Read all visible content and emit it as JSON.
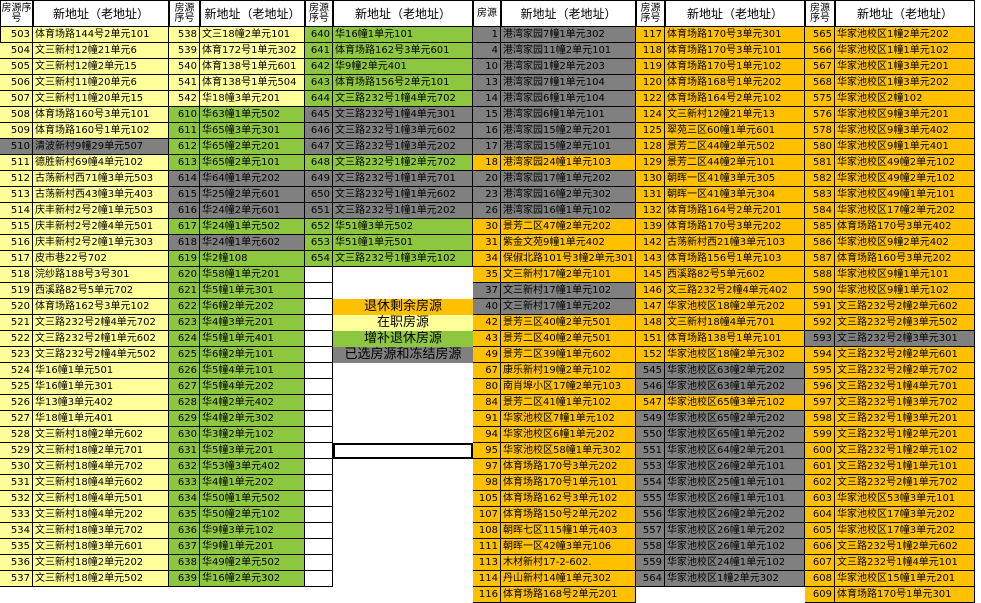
{
  "headers": {
    "num_a": "房源序号",
    "addr": "新地址（老地址）",
    "num_b": "房源"
  },
  "colors": {
    "retired": "#ffc000",
    "working": "#ffff99",
    "supplement": "#8dc63f",
    "selected_frozen": "#808080"
  },
  "legend": {
    "retired": "退休剩余房源",
    "working": "在职房源",
    "supplement": "增补退休房源",
    "selected_frozen": "已选房源和冻结房源"
  },
  "groups": [
    {
      "name": "group-1",
      "header_num": "房源序号",
      "rows": [
        {
          "n": "503",
          "a": "体育场路144号2单元101",
          "c": "y"
        },
        {
          "n": "504",
          "a": "文三新村12幢21单元6",
          "c": "y"
        },
        {
          "n": "505",
          "a": "文三新村12幢2单元15",
          "c": "y"
        },
        {
          "n": "506",
          "a": "文三新村11幢20单元6",
          "c": "y"
        },
        {
          "n": "507",
          "a": "文三新村11幢20单元15",
          "c": "y"
        },
        {
          "n": "508",
          "a": "体育场路160号3单元101",
          "c": "y"
        },
        {
          "n": "509",
          "a": "体育场路160号1单元102",
          "c": "y"
        },
        {
          "n": "510",
          "a": "清波新村9幢29单元507",
          "c": "k"
        },
        {
          "n": "511",
          "a": "德胜新村69幢4单元102",
          "c": "y"
        },
        {
          "n": "512",
          "a": "古荡新村西71幢3单元503",
          "c": "y"
        },
        {
          "n": "513",
          "a": "古荡新村西43幢3单元403",
          "c": "y"
        },
        {
          "n": "514",
          "a": "庆丰新村2号2幢1单元503",
          "c": "y"
        },
        {
          "n": "515",
          "a": "庆丰新村2号2幢4单元501",
          "c": "y"
        },
        {
          "n": "516",
          "a": "庆丰新村2号2幢1单元303",
          "c": "y"
        },
        {
          "n": "517",
          "a": "皮市巷22号702",
          "c": "y"
        },
        {
          "n": "518",
          "a": "浣纱路188号3号301",
          "c": "y"
        },
        {
          "n": "519",
          "a": "西溪路82号5单元702",
          "c": "y"
        },
        {
          "n": "520",
          "a": "体育场路162号3单元102",
          "c": "y"
        },
        {
          "n": "521",
          "a": "文三路232号2幢4单元702",
          "c": "y"
        },
        {
          "n": "522",
          "a": "文三路232号2幢1单元602",
          "c": "y"
        },
        {
          "n": "523",
          "a": "文三路232号2幢4单元502",
          "c": "y"
        },
        {
          "n": "524",
          "a": "华16幢1单元501",
          "c": "y"
        },
        {
          "n": "525",
          "a": "华16幢1单元301",
          "c": "y"
        },
        {
          "n": "526",
          "a": "华13幢3单元402",
          "c": "y"
        },
        {
          "n": "527",
          "a": "华18幢1单元401",
          "c": "y"
        },
        {
          "n": "528",
          "a": "文三新村18幢2单元602",
          "c": "y"
        },
        {
          "n": "529",
          "a": "文三新村18幢2单元701",
          "c": "y"
        },
        {
          "n": "530",
          "a": "文三新村18幢4单元702",
          "c": "y"
        },
        {
          "n": "531",
          "a": "文三新村18幢4单元602",
          "c": "y"
        },
        {
          "n": "532",
          "a": "文三新村18幢4单元501",
          "c": "y"
        },
        {
          "n": "533",
          "a": "文三新村18幢4单元202",
          "c": "y"
        },
        {
          "n": "534",
          "a": "文三新村18幢3单元702",
          "c": "y"
        },
        {
          "n": "535",
          "a": "文三新村18幢3单元601",
          "c": "y"
        },
        {
          "n": "536",
          "a": "文三新村18幢2单元202",
          "c": "y"
        },
        {
          "n": "537",
          "a": "文三新村18幢2单元502",
          "c": "y"
        }
      ]
    },
    {
      "name": "group-2",
      "header_num": "房源序号",
      "rows": [
        {
          "n": "538",
          "a": "文三18幢2单元101",
          "c": "y"
        },
        {
          "n": "539",
          "a": "体育172号1单元302",
          "c": "y"
        },
        {
          "n": "540",
          "a": "体育138号1单元601",
          "c": "y"
        },
        {
          "n": "541",
          "a": "体育138号1单元504",
          "c": "y"
        },
        {
          "n": "542",
          "a": "华18幢3单元201",
          "c": "y"
        },
        {
          "n": "610",
          "a": "华63幢1单元502",
          "c": "g"
        },
        {
          "n": "611",
          "a": "华65幢3单元301",
          "c": "g"
        },
        {
          "n": "612",
          "a": "华65幢2单元201",
          "c": "g"
        },
        {
          "n": "613",
          "a": "华65幢2单元101",
          "c": "g"
        },
        {
          "n": "614",
          "a": "华64幢1单元202",
          "c": "k"
        },
        {
          "n": "615",
          "a": "华25幢2单元601",
          "c": "k"
        },
        {
          "n": "616",
          "a": "华24幢2单元601",
          "c": "k"
        },
        {
          "n": "617",
          "a": "华24幢1单元502",
          "c": "g"
        },
        {
          "n": "618",
          "a": "华24幢1单元602",
          "c": "k"
        },
        {
          "n": "619",
          "a": "华2幢108",
          "c": "g"
        },
        {
          "n": "620",
          "a": "华58幢1单元201",
          "c": "g"
        },
        {
          "n": "621",
          "a": "华5幢1单元301",
          "c": "g"
        },
        {
          "n": "622",
          "a": "华6幢2单元202",
          "c": "g"
        },
        {
          "n": "623",
          "a": "华4幢3单元201",
          "c": "g"
        },
        {
          "n": "624",
          "a": "华5幢1单元401",
          "c": "g"
        },
        {
          "n": "625",
          "a": "华6幢2单元101",
          "c": "g"
        },
        {
          "n": "626",
          "a": "华5幢4单元101",
          "c": "g"
        },
        {
          "n": "627",
          "a": "华5幢4单元202",
          "c": "g"
        },
        {
          "n": "628",
          "a": "华4幢2单元402",
          "c": "g"
        },
        {
          "n": "629",
          "a": "华4幢2单元302",
          "c": "g"
        },
        {
          "n": "630",
          "a": "华3幢2单元102",
          "c": "g"
        },
        {
          "n": "631",
          "a": "华5幢3单元201",
          "c": "g"
        },
        {
          "n": "632",
          "a": "华53幢3单元402",
          "c": "g"
        },
        {
          "n": "633",
          "a": "华4幢1单元202",
          "c": "g"
        },
        {
          "n": "634",
          "a": "华50幢1单元502",
          "c": "g"
        },
        {
          "n": "635",
          "a": "华50幢2单元102",
          "c": "g"
        },
        {
          "n": "636",
          "a": "华9幢3单元102",
          "c": "g"
        },
        {
          "n": "637",
          "a": "华9幢1单元201",
          "c": "g"
        },
        {
          "n": "638",
          "a": "华49幢2单元502",
          "c": "g"
        },
        {
          "n": "639",
          "a": "华16幢2单元302",
          "c": "g"
        }
      ]
    },
    {
      "name": "group-3",
      "header_num": "房源序号",
      "rows": [
        {
          "n": "640",
          "a": "华16幢1单元101",
          "c": "g"
        },
        {
          "n": "641",
          "a": "体育场路162号3单元601",
          "c": "g"
        },
        {
          "n": "642",
          "a": "华9幢2单元401",
          "c": "g"
        },
        {
          "n": "643",
          "a": "体育场路156号2单元101",
          "c": "g"
        },
        {
          "n": "644",
          "a": "文三路232号1幢4单元702",
          "c": "g"
        },
        {
          "n": "645",
          "a": "文三路232号1幢4单元301",
          "c": "k"
        },
        {
          "n": "646",
          "a": "文三路232号1幢3单元602",
          "c": "k"
        },
        {
          "n": "647",
          "a": "文三路232号1幢3单元202",
          "c": "k"
        },
        {
          "n": "648",
          "a": "文三路232号1幢2单元702",
          "c": "g"
        },
        {
          "n": "649",
          "a": "文三路232号1幢1单元701",
          "c": "k"
        },
        {
          "n": "650",
          "a": "文三路232号1幢1单元602",
          "c": "k"
        },
        {
          "n": "651",
          "a": "文三路232号1幢1单元202",
          "c": "k"
        },
        {
          "n": "652",
          "a": "华51幢3单元502",
          "c": "g"
        },
        {
          "n": "653",
          "a": "华51幢1单元501",
          "c": "g"
        },
        {
          "n": "654",
          "a": "文三路232号1幢3单元102",
          "c": "g"
        }
      ]
    },
    {
      "name": "group-4",
      "header_num": "房源",
      "rows": [
        {
          "n": "1",
          "a": "港湾家园7幢1单元302",
          "c": "k"
        },
        {
          "n": "4",
          "a": "港湾家园11幢2单元101",
          "c": "k"
        },
        {
          "n": "10",
          "a": "港湾家园1幢2单元203",
          "c": "k"
        },
        {
          "n": "13",
          "a": "港湾家园7幢1单元104",
          "c": "k"
        },
        {
          "n": "14",
          "a": "港湾家园6幢1单元104",
          "c": "k"
        },
        {
          "n": "15",
          "a": "港湾家园6幢1单元101",
          "c": "k"
        },
        {
          "n": "16",
          "a": "港湾家园15幢2单元201",
          "c": "k"
        },
        {
          "n": "17",
          "a": "港湾家园15幢2单元101",
          "c": "k"
        },
        {
          "n": "18",
          "a": "港湾家园24幢1单元103",
          "c": "o"
        },
        {
          "n": "20",
          "a": "港湾家园17幢1单元202",
          "c": "k"
        },
        {
          "n": "23",
          "a": "港湾家园16幢2单元302",
          "c": "k"
        },
        {
          "n": "26",
          "a": "港湾家园16幢1单元102",
          "c": "k"
        },
        {
          "n": "30",
          "a": "景芳二区47幢2单元202",
          "c": "o"
        },
        {
          "n": "31",
          "a": "紫金文苑9幢1单元402",
          "c": "o"
        },
        {
          "n": "34",
          "a": "保俶北路101号3幢2单元301",
          "c": "o"
        },
        {
          "n": "35",
          "a": "文三新村17幢2单元101",
          "c": "o"
        },
        {
          "n": "37",
          "a": "文三新村17幢1单元102",
          "c": "k"
        },
        {
          "n": "40",
          "a": "文三新村17幢1单元202",
          "c": "k"
        },
        {
          "n": "42",
          "a": "景芳三区40幢2单元501",
          "c": "o"
        },
        {
          "n": "43",
          "a": "景芳二区40幢2单元501",
          "c": "o"
        },
        {
          "n": "49",
          "a": "景芳二区39幢1单元602",
          "c": "o"
        },
        {
          "n": "67",
          "a": "康乐新村19幢2单元102",
          "c": "o"
        },
        {
          "n": "80",
          "a": "南肖埠小区17幢2单元103",
          "c": "o"
        },
        {
          "n": "84",
          "a": "景芳二区41幢1单元102",
          "c": "o"
        },
        {
          "n": "91",
          "a": "华家池校区7幢1单元102",
          "c": "o"
        },
        {
          "n": "94",
          "a": "华家池校区6幢1单元202",
          "c": "o"
        },
        {
          "n": "95",
          "a": "华家池校区58幢1单元302",
          "c": "o"
        },
        {
          "n": "97",
          "a": "体育场路170号3单元202",
          "c": "o"
        },
        {
          "n": "98",
          "a": "体育场路170号1单元101",
          "c": "o"
        },
        {
          "n": "105",
          "a": "体育场路162号3单元102",
          "c": "o"
        },
        {
          "n": "107",
          "a": "体育场路150号2单元202",
          "c": "o"
        },
        {
          "n": "108",
          "a": "朝晖七区115幢1单元403",
          "c": "o"
        },
        {
          "n": "111",
          "a": "朝晖一区42幢3单元106",
          "c": "o"
        },
        {
          "n": "113",
          "a": "木材新村17-2-602.",
          "c": "o"
        },
        {
          "n": "114",
          "a": "丹山新村14幢1单元302",
          "c": "o"
        },
        {
          "n": "116",
          "a": "体育场路168号2单元201",
          "c": "o"
        }
      ]
    },
    {
      "name": "group-5",
      "header_num": "房源序号",
      "rows": [
        {
          "n": "117",
          "a": "体育场路170号3单元301",
          "c": "o"
        },
        {
          "n": "118",
          "a": "体育场路170号3单元101",
          "c": "o"
        },
        {
          "n": "119",
          "a": "体育场路170号1单元102",
          "c": "o"
        },
        {
          "n": "120",
          "a": "体育场路168号1单元202",
          "c": "o"
        },
        {
          "n": "122",
          "a": "体育场路164号2单元102",
          "c": "o"
        },
        {
          "n": "124",
          "a": "文三新村12幢21单元13",
          "c": "o"
        },
        {
          "n": "125",
          "a": "翠苑三区60幢1单元601",
          "c": "o"
        },
        {
          "n": "128",
          "a": "景芳二区44幢2单元502",
          "c": "o"
        },
        {
          "n": "129",
          "a": "景芳二区44幢2单元101",
          "c": "o"
        },
        {
          "n": "130",
          "a": "朝晖一区41幢3单元305",
          "c": "o"
        },
        {
          "n": "131",
          "a": "朝晖一区41幢3单元304",
          "c": "o"
        },
        {
          "n": "132",
          "a": "体育场路164号2单元201",
          "c": "o"
        },
        {
          "n": "139",
          "a": "体育场路170号3单元202",
          "c": "o"
        },
        {
          "n": "142",
          "a": "古荡新村西21幢3单元103",
          "c": "o"
        },
        {
          "n": "143",
          "a": "体育场路156号1单元103",
          "c": "o"
        },
        {
          "n": "145",
          "a": "西溪路82号5单元602",
          "c": "o"
        },
        {
          "n": "146",
          "a": "文三路232号2幢4单元402",
          "c": "o"
        },
        {
          "n": "147",
          "a": "华家池校区18幢2单元202",
          "c": "o"
        },
        {
          "n": "148",
          "a": "文三新村18幢4单元701",
          "c": "o"
        },
        {
          "n": "151",
          "a": "体育场路138号1单元101",
          "c": "o"
        },
        {
          "n": "152",
          "a": "华家池校区18幢2单元302",
          "c": "o"
        },
        {
          "n": "545",
          "a": "华家池校区63幢2单元202",
          "c": "k"
        },
        {
          "n": "546",
          "a": "华家池校区63幢1单元202",
          "c": "k"
        },
        {
          "n": "547",
          "a": "华家池校区65幢3单元102",
          "c": "o"
        },
        {
          "n": "549",
          "a": "华家池校区65幢2单元202",
          "c": "k"
        },
        {
          "n": "550",
          "a": "华家池校区65幢1单元202",
          "c": "k"
        },
        {
          "n": "551",
          "a": "华家池校区64幢2单元201",
          "c": "k"
        },
        {
          "n": "553",
          "a": "华家池校区26幢2单元101",
          "c": "k"
        },
        {
          "n": "554",
          "a": "华家池校区25幢1单元101",
          "c": "k"
        },
        {
          "n": "555",
          "a": "华家池校区26幢1单元101",
          "c": "k"
        },
        {
          "n": "556",
          "a": "华家池校区26幢2单元202",
          "c": "k"
        },
        {
          "n": "557",
          "a": "华家池校区26幢1单元202",
          "c": "k"
        },
        {
          "n": "558",
          "a": "华家池校区26幢1单元102",
          "c": "k"
        },
        {
          "n": "559",
          "a": "华家池校区24幢1单元102",
          "c": "k"
        },
        {
          "n": "564",
          "a": "华家池校区1幢2单元302",
          "c": "k"
        }
      ]
    },
    {
      "name": "group-6",
      "header_num": "房源序号",
      "rows": [
        {
          "n": "565",
          "a": "华家池校区1幢2单元202",
          "c": "o"
        },
        {
          "n": "566",
          "a": "华家池校区1幢1单元102",
          "c": "o"
        },
        {
          "n": "567",
          "a": "华家池校区1幢3单元201",
          "c": "o"
        },
        {
          "n": "568",
          "a": "华家池校区1幢3单元202",
          "c": "o"
        },
        {
          "n": "575",
          "a": "华家池校区2幢102",
          "c": "o"
        },
        {
          "n": "576",
          "a": "华家池校区9幢3单元201",
          "c": "o"
        },
        {
          "n": "578",
          "a": "华家池校区9幢3单元402",
          "c": "o"
        },
        {
          "n": "580",
          "a": "华家池校区9幢1单元401",
          "c": "o"
        },
        {
          "n": "581",
          "a": "华家池校区49幢2单元102",
          "c": "o"
        },
        {
          "n": "582",
          "a": "华家池校区49幢2单元102",
          "c": "o"
        },
        {
          "n": "583",
          "a": "华家池校区49幢1单元101",
          "c": "o"
        },
        {
          "n": "584",
          "a": "华家池校区17幢2单元202",
          "c": "o"
        },
        {
          "n": "585",
          "a": "体育场路170号3单元402",
          "c": "o"
        },
        {
          "n": "586",
          "a": "华家池校区9幢2单元402",
          "c": "o"
        },
        {
          "n": "587",
          "a": "体育场路160号3单元202",
          "c": "o"
        },
        {
          "n": "588",
          "a": "华家池校区9幢1单元101",
          "c": "o"
        },
        {
          "n": "590",
          "a": "华家池校区9幢1单元102",
          "c": "o"
        },
        {
          "n": "591",
          "a": "文三路232号2幢2单元602",
          "c": "o"
        },
        {
          "n": "592",
          "a": "文三路232号2幢3单元502",
          "c": "o"
        },
        {
          "n": "593",
          "a": "文三路232号2幢3单元301",
          "c": "k"
        },
        {
          "n": "594",
          "a": "文三路232号2幢2单元601",
          "c": "o"
        },
        {
          "n": "595",
          "a": "文三路232号2幢2单元702",
          "c": "o"
        },
        {
          "n": "596",
          "a": "文三路232号1幢4单元701",
          "c": "o"
        },
        {
          "n": "597",
          "a": "文三路232号1幢3单元702",
          "c": "o"
        },
        {
          "n": "598",
          "a": "文三路232号1幢3单元201",
          "c": "o"
        },
        {
          "n": "599",
          "a": "文三路232号1幢2单元201",
          "c": "o"
        },
        {
          "n": "600",
          "a": "文三路232号1幢2单元102",
          "c": "o"
        },
        {
          "n": "601",
          "a": "文三路232号1幢1单元101",
          "c": "o"
        },
        {
          "n": "602",
          "a": "文三路232号2幢1单元702",
          "c": "o"
        },
        {
          "n": "603",
          "a": "华家池校区53幢3单元101",
          "c": "o"
        },
        {
          "n": "604",
          "a": "华家池校区17幢3单元202",
          "c": "o"
        },
        {
          "n": "605",
          "a": "华家池校区17幢3单元202",
          "c": "o"
        },
        {
          "n": "606",
          "a": "文三路232号1幢2单元602",
          "c": "o"
        },
        {
          "n": "607",
          "a": "文三路232号1幢4单元101",
          "c": "o"
        },
        {
          "n": "608",
          "a": "华家池校区15幢1单元201",
          "c": "o"
        },
        {
          "n": "609",
          "a": "体育场路170号1单元301",
          "c": "o"
        }
      ]
    }
  ]
}
